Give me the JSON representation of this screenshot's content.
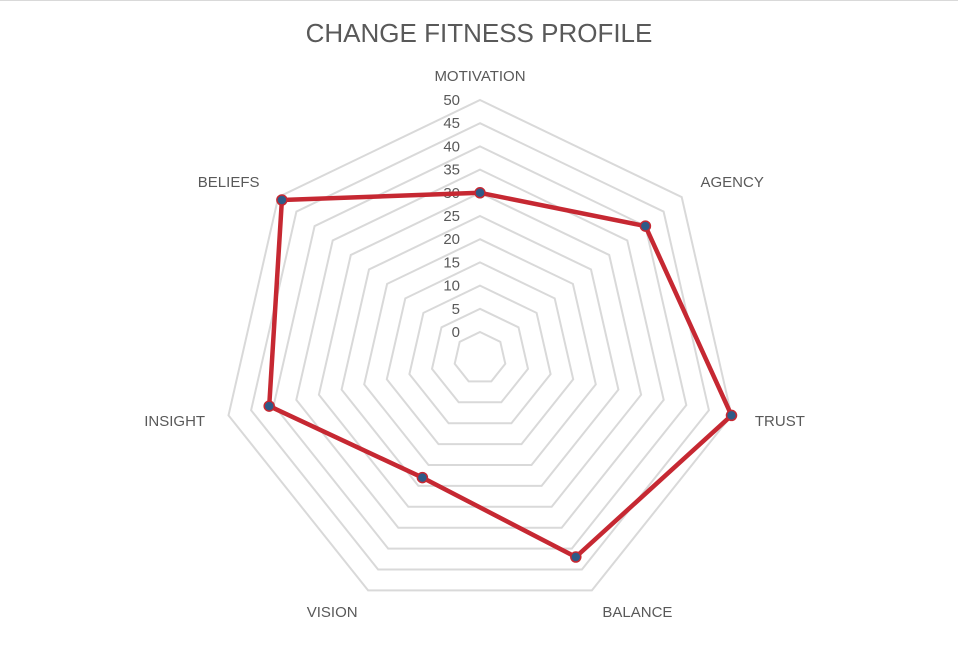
{
  "chart_data": {
    "type": "radar",
    "title": "CHANGE FITNESS PROFILE",
    "categories": [
      "MOTIVATION",
      "AGENCY",
      "TRUST",
      "BALANCE",
      "VISION",
      "INSIGHT",
      "BELIEFS"
    ],
    "values": [
      30,
      40,
      50,
      42,
      23,
      41,
      49
    ],
    "r_ticks": [
      0,
      5,
      10,
      15,
      20,
      25,
      30,
      35,
      40,
      45,
      50
    ],
    "rlim": [
      0,
      50
    ],
    "grid": true,
    "legend": "none",
    "colors": {
      "series_line": "#c62832",
      "marker_fill": "#2f5a87",
      "grid": "#d9d9d9",
      "text": "#595959"
    }
  }
}
